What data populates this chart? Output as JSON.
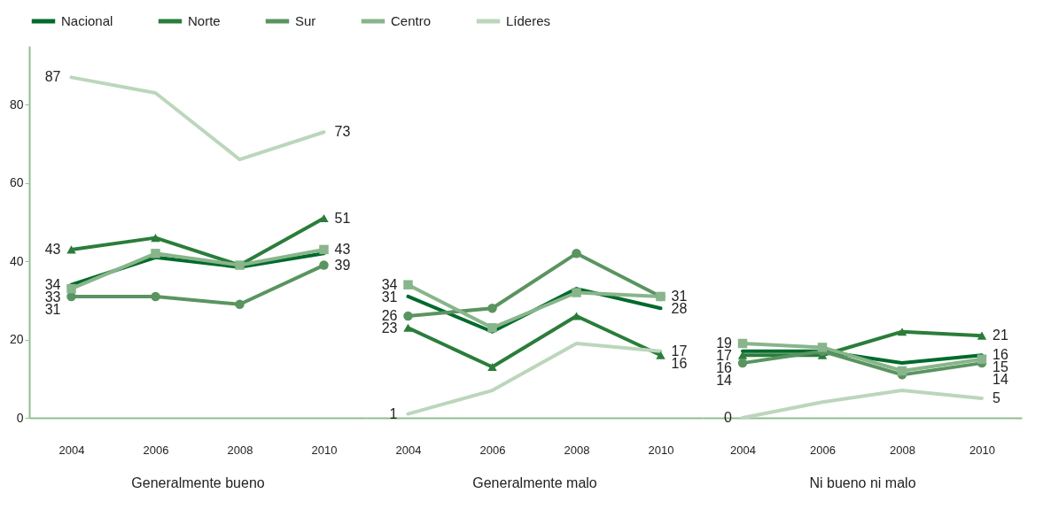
{
  "chart_data": [
    {
      "type": "line",
      "xlabel": "Generalmente bueno",
      "categories": [
        "2004",
        "2006",
        "2008",
        "2010"
      ],
      "ylim": [
        0,
        95
      ],
      "yticks": [
        0,
        20,
        40,
        60,
        80
      ],
      "grid": false,
      "legend": "top",
      "series": [
        {
          "name": "Nacional",
          "color": "#006a2c",
          "marker": "none",
          "values": [
            34,
            41,
            38.5,
            42
          ],
          "value_labels": [
            "34",
            null,
            null,
            null
          ]
        },
        {
          "name": "Norte",
          "color": "#2a7d3a",
          "marker": "triangle",
          "values": [
            43,
            46,
            39,
            51
          ],
          "value_labels": [
            "43",
            null,
            null,
            "51"
          ]
        },
        {
          "name": "Sur",
          "color": "#5a9460",
          "marker": "circle",
          "values": [
            31,
            31,
            29,
            39
          ],
          "value_labels": [
            "31",
            null,
            null,
            "39"
          ]
        },
        {
          "name": "Centro",
          "color": "#88b58b",
          "marker": "square",
          "values": [
            33,
            42,
            39,
            43
          ],
          "value_labels": [
            "33",
            null,
            null,
            "43"
          ]
        },
        {
          "name": "Líderes",
          "color": "#bcd6bc",
          "marker": "none",
          "values": [
            87,
            83,
            66,
            73
          ],
          "value_labels": [
            "87",
            null,
            null,
            "73"
          ]
        }
      ]
    },
    {
      "type": "line",
      "xlabel": "Generalmente malo",
      "categories": [
        "2004",
        "2006",
        "2008",
        "2010"
      ],
      "grid": false,
      "tick_labels": "x",
      "series": [
        {
          "name": "Nacional",
          "color": "#006a2c",
          "marker": "none",
          "values": [
            31,
            22,
            33,
            28
          ],
          "value_labels": [
            "31",
            null,
            null,
            "28"
          ]
        },
        {
          "name": "Norte",
          "color": "#2a7d3a",
          "marker": "triangle",
          "values": [
            23,
            13,
            26,
            16
          ],
          "value_labels": [
            "23",
            null,
            null,
            "16"
          ]
        },
        {
          "name": "Sur",
          "color": "#5a9460",
          "marker": "circle",
          "values": [
            26,
            28,
            42,
            31
          ],
          "value_labels": [
            "26",
            null,
            null,
            null
          ]
        },
        {
          "name": "Centro",
          "color": "#88b58b",
          "marker": "square",
          "values": [
            34,
            23,
            32,
            31
          ],
          "value_labels": [
            "34",
            null,
            null,
            "31"
          ]
        },
        {
          "name": "Líderes",
          "color": "#bcd6bc",
          "marker": "none",
          "values": [
            1,
            7,
            19,
            17
          ],
          "value_labels": [
            "1",
            null,
            null,
            "17"
          ]
        }
      ]
    },
    {
      "type": "line",
      "xlabel": "Ni bueno ni malo",
      "categories": [
        "2004",
        "2006",
        "2008",
        "2010"
      ],
      "grid": false,
      "tick_labels": "x",
      "series": [
        {
          "name": "Nacional",
          "color": "#006a2c",
          "marker": "none",
          "values": [
            17,
            17,
            14,
            16
          ],
          "value_labels": [
            "17",
            null,
            null,
            "16"
          ]
        },
        {
          "name": "Norte",
          "color": "#2a7d3a",
          "marker": "triangle",
          "values": [
            16,
            16,
            22,
            21
          ],
          "value_labels": [
            "16",
            null,
            null,
            "21"
          ]
        },
        {
          "name": "Sur",
          "color": "#5a9460",
          "marker": "circle",
          "values": [
            14,
            17,
            11,
            14
          ],
          "value_labels": [
            "14",
            null,
            null,
            "14"
          ]
        },
        {
          "name": "Centro",
          "color": "#88b58b",
          "marker": "square",
          "values": [
            19,
            18,
            12,
            15
          ],
          "value_labels": [
            "19",
            null,
            null,
            "15"
          ]
        },
        {
          "name": "Líderes",
          "color": "#bcd6bc",
          "marker": "none",
          "values": [
            0,
            4,
            7,
            5
          ],
          "value_labels": [
            "0",
            null,
            null,
            "5"
          ]
        }
      ]
    }
  ]
}
